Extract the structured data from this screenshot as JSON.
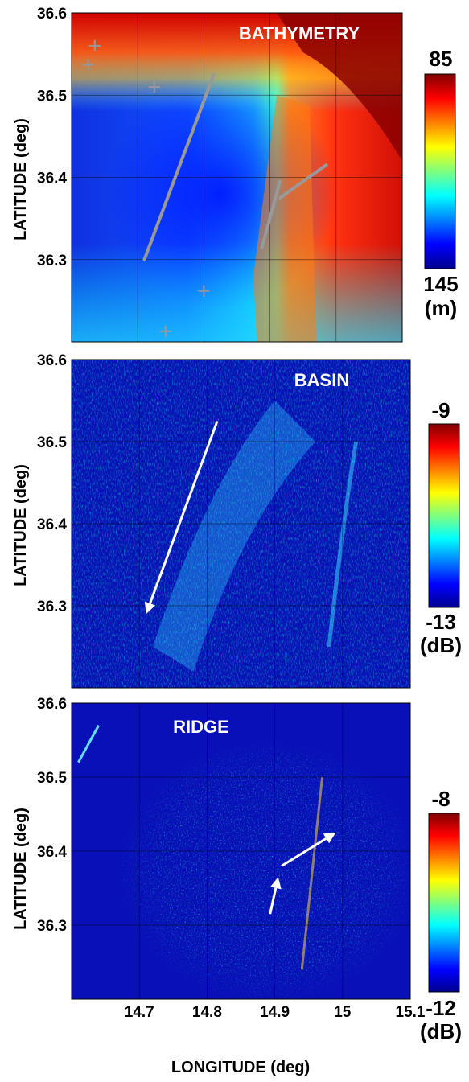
{
  "chart_data": [
    {
      "type": "heatmap",
      "title": "BATHYMETRY",
      "ylabel": "LATITUDE (deg)",
      "xlim": [
        14.6,
        15.1
      ],
      "ylim": [
        36.2,
        36.6
      ],
      "yticks": [
        "36.3",
        "36.4",
        "36.5",
        "36.6"
      ],
      "colorbar": {
        "top": "85",
        "bottom": "145",
        "unit": "(m)"
      },
      "lines": [
        {
          "from": [
            14.71,
            36.3
          ],
          "to": [
            14.815,
            36.525
          ],
          "color": "#999999"
        },
        {
          "from": [
            14.888,
            36.315
          ],
          "to": [
            14.915,
            36.395
          ],
          "color": "#999999"
        },
        {
          "from": [
            14.915,
            36.375
          ],
          "to": [
            14.985,
            36.415
          ],
          "color": "#999999"
        }
      ],
      "markers": [
        {
          "lon": 14.635,
          "lat": 36.56
        },
        {
          "lon": 14.625,
          "lat": 36.537
        },
        {
          "lon": 14.725,
          "lat": 36.51
        },
        {
          "lon": 14.8,
          "lat": 36.262
        },
        {
          "lon": 14.742,
          "lat": 36.213
        }
      ]
    },
    {
      "type": "heatmap",
      "title": "BASIN",
      "ylabel": "LATITUDE (deg)",
      "xlim": [
        14.6,
        15.1
      ],
      "ylim": [
        36.2,
        36.6
      ],
      "yticks": [
        "36.3",
        "36.4",
        "36.5",
        "36.6"
      ],
      "colorbar": {
        "top": "-9",
        "bottom": "-13",
        "unit": "(dB)"
      },
      "arrows": [
        {
          "from": [
            14.815,
            36.525
          ],
          "to": [
            14.71,
            36.29
          ]
        }
      ]
    },
    {
      "type": "heatmap",
      "title": "RIDGE",
      "ylabel": "LATITUDE (deg)",
      "xlabel": "LONGITUDE (deg)",
      "xlim": [
        14.6,
        15.1
      ],
      "ylim": [
        36.2,
        36.6
      ],
      "xticks": [
        "14.7",
        "14.8",
        "14.9",
        "15",
        "15.1"
      ],
      "yticks": [
        "36.3",
        "36.4",
        "36.5",
        "36.6"
      ],
      "colorbar": {
        "top": "-8",
        "bottom": "-12",
        "unit": "(dB)"
      },
      "arrows": [
        {
          "from": [
            14.893,
            36.315
          ],
          "to": [
            14.905,
            36.365
          ]
        },
        {
          "from": [
            14.91,
            36.38
          ],
          "to": [
            14.99,
            36.425
          ]
        }
      ]
    }
  ]
}
